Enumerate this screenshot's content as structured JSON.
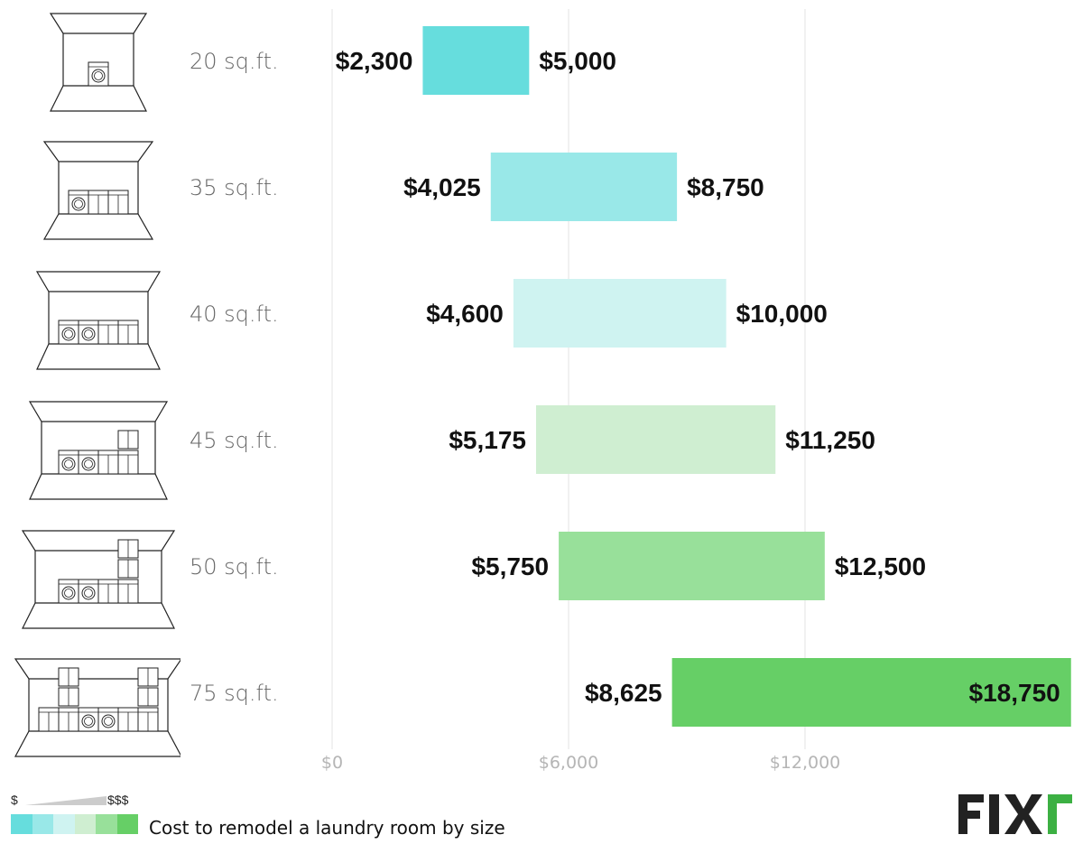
{
  "chart_data": {
    "type": "bar",
    "subtype": "floating-range",
    "title": "Cost to remodel a laundry room by size",
    "categories": [
      "20 sq.ft.",
      "35 sq.ft.",
      "40 sq.ft.",
      "45 sq.ft.",
      "50 sq.ft.",
      "75 sq.ft."
    ],
    "series": [
      {
        "low": 2300,
        "high": 5000,
        "low_label": "$2,300",
        "high_label": "$5,000",
        "color": "#66dddd"
      },
      {
        "low": 4025,
        "high": 8750,
        "low_label": "$4,025",
        "high_label": "$8,750",
        "color": "#99e8e8"
      },
      {
        "low": 4600,
        "high": 10000,
        "low_label": "$4,600",
        "high_label": "$10,000",
        "color": "#cff3f1"
      },
      {
        "low": 5175,
        "high": 11250,
        "low_label": "$5,175",
        "high_label": "$11,250",
        "color": "#cfeed1"
      },
      {
        "low": 5750,
        "high": 12500,
        "low_label": "$5,750",
        "high_label": "$12,500",
        "color": "#98e09a"
      },
      {
        "low": 8625,
        "high": 18750,
        "low_label": "$8,625",
        "high_label": "$18,750",
        "color": "#66cf66"
      }
    ],
    "x_ticks": [
      0,
      6000,
      12000
    ],
    "x_tick_labels": [
      "$0",
      "$6,000",
      "$12,000"
    ],
    "xlim": [
      0,
      18750
    ],
    "grid": true,
    "legend": {
      "min_label": "$",
      "max_label": "$$$",
      "text": "Cost to remodel a laundry room by size",
      "swatches": [
        "#66dddd",
        "#99e8e8",
        "#cff3f1",
        "#cfeed1",
        "#98e09a",
        "#66cf66"
      ]
    }
  },
  "room_icons": [
    "laundry-room-20",
    "laundry-room-35",
    "laundry-room-40",
    "laundry-room-45",
    "laundry-room-50",
    "laundry-room-75"
  ],
  "logo": {
    "text": "FIXr",
    "colors": {
      "text": "#222222",
      "accent": "#3cb043"
    }
  }
}
